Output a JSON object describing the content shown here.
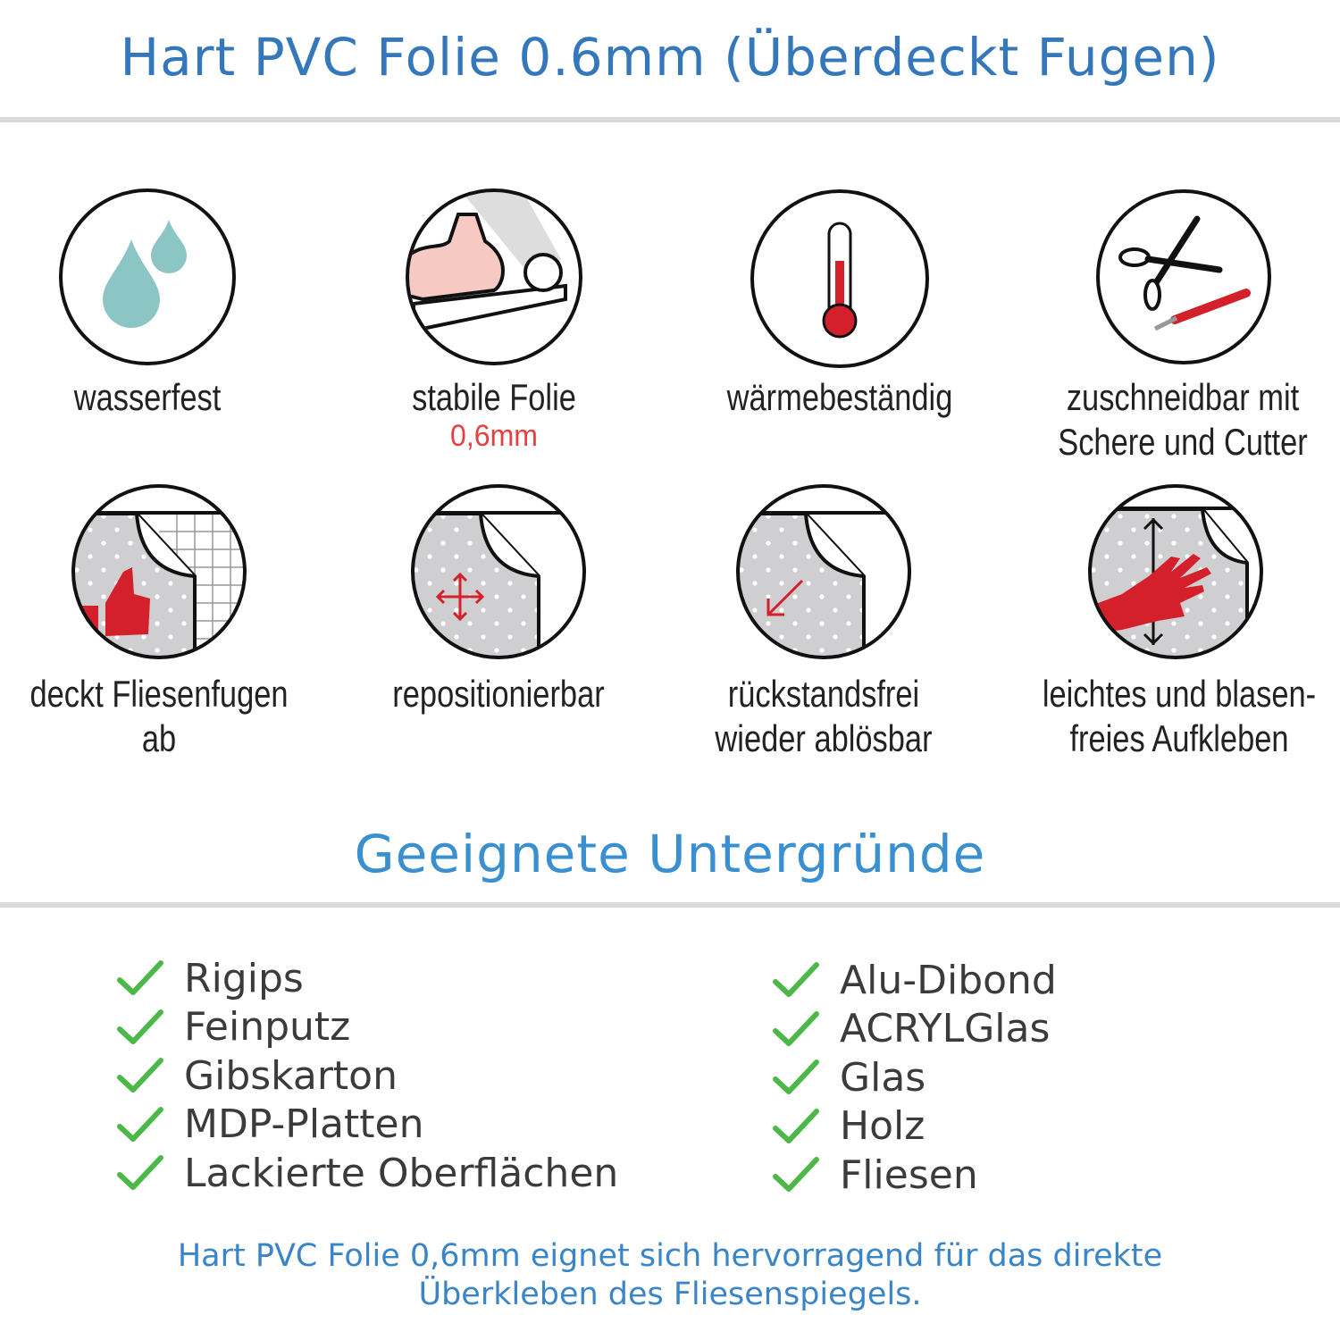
{
  "header": {
    "title": "Hart PVC Folie 0.6mm (Überdeckt Fugen)"
  },
  "features": [
    {
      "icon": "water-drops-icon",
      "label": "wasserfest"
    },
    {
      "icon": "strong-arm-film-icon",
      "label": "stabile Folie",
      "sub": "0,6mm"
    },
    {
      "icon": "thermometer-icon",
      "label": "wärmebeständig"
    },
    {
      "icon": "scissors-cutter-icon",
      "line1": "zuschneidbar mit",
      "line2": "Schere und Cutter"
    },
    {
      "icon": "thumbs-up-tiles-icon",
      "label": "deckt Fliesenfugen ab"
    },
    {
      "icon": "move-arrows-icon",
      "label": "repositionierbar"
    },
    {
      "icon": "peel-arrow-icon",
      "line1": "rückstandsfrei",
      "line2": "wieder ablösbar"
    },
    {
      "icon": "hand-smooth-icon",
      "line1": "leichtes und blasen-",
      "line2": "freies Aufkleben"
    }
  ],
  "section": {
    "title": "Geeignete Untergründe"
  },
  "surfaces_left": [
    "Rigips",
    "Feinputz",
    "Gibskarton",
    "MDP-Platten",
    "Lackierte Oberflächen"
  ],
  "surfaces_right": [
    "Alu-Dibond",
    "ACRYLGlas",
    "Glas",
    "Holz",
    "Fliesen"
  ],
  "footer": {
    "line1": "Hart PVC Folie 0,6mm eignet sich hervorragend für das direkte",
    "line2": "Überkleben des Fliesenspiegels."
  },
  "colors": {
    "title": "#3478bb",
    "section": "#3a8fd0",
    "check": "#4cb848",
    "accent_red": "#d3202a",
    "water": "#8cc6c4",
    "film_gray": "#cfcfd1"
  }
}
